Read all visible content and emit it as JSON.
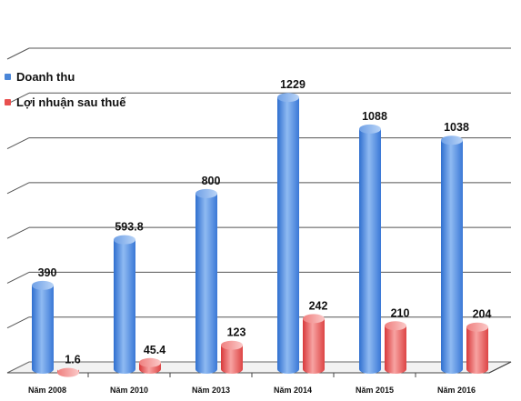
{
  "chart_data": {
    "type": "bar",
    "categories": [
      "Năm 2008",
      "Năm 2010",
      "Năm 2013",
      "Năm 2014",
      "Năm 2015",
      "Năm 2016"
    ],
    "series": [
      {
        "name": "Doanh thu",
        "values": [
          390,
          593.8,
          800,
          1229,
          1088,
          1038
        ],
        "labels": [
          "390",
          "593.8",
          "800",
          "1229",
          "1088",
          "1038"
        ],
        "color": "#4a86d8"
      },
      {
        "name": "Lợi nhuận sau thuế",
        "values": [
          1.6,
          45.4,
          123,
          242,
          210,
          204
        ],
        "labels": [
          "1.6",
          "45.4",
          "123",
          "242",
          "210",
          "204"
        ],
        "color": "#e8504f"
      }
    ],
    "ylim": [
      0,
      1400
    ],
    "grid": true,
    "legend_position": "left"
  }
}
